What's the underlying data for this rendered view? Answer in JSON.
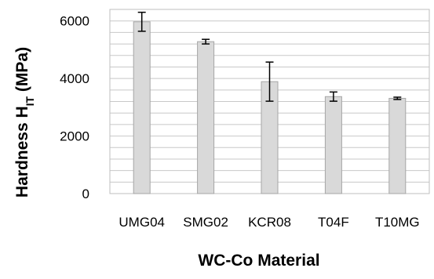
{
  "chart_data": {
    "type": "bar",
    "title": "",
    "xlabel": "WC-Co Material",
    "ylabel": {
      "main": "Hardness H",
      "subscript": "IT",
      "unit": " (MPa)"
    },
    "categories": [
      "UMG04",
      "SMG02",
      "KCR08",
      "T04F",
      "T10MG"
    ],
    "values": [
      5970,
      5280,
      3890,
      3370,
      3310
    ],
    "error": [
      330,
      80,
      680,
      160,
      40
    ],
    "ylim": [
      0,
      6400
    ],
    "yticks": [
      0,
      2000,
      4000,
      6000
    ],
    "ytick_labels": [
      "0",
      "2000",
      "4000",
      "6000"
    ],
    "minor_grid_step": 400,
    "grid": true,
    "legend": "none",
    "colors": {
      "bar_fill": "#d9d9d9",
      "bar_stroke": "#a6a6a6",
      "grid": "#c8c8c8",
      "plot_border": "#bfbfbf",
      "error_bar": "#000000"
    }
  }
}
